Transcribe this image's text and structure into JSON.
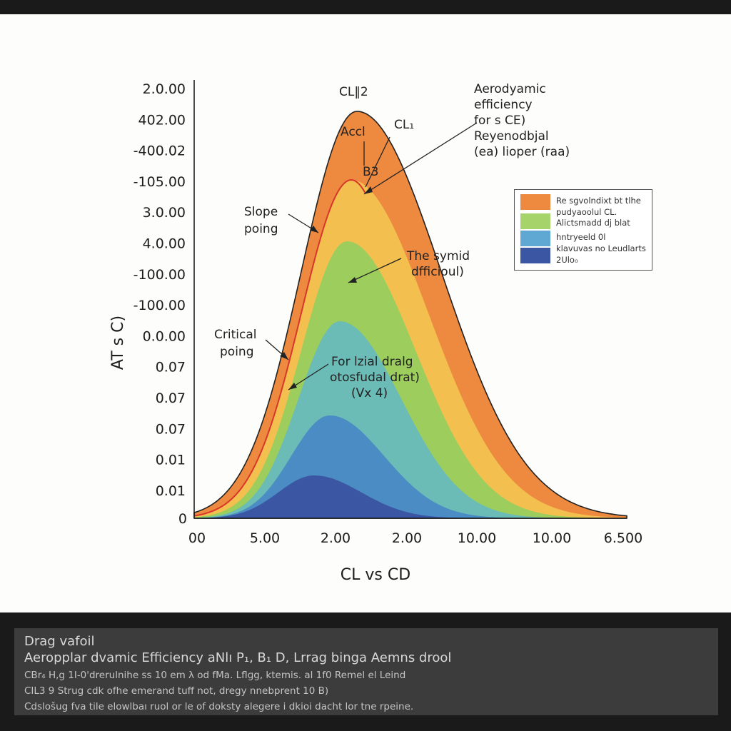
{
  "chart_data": {
    "type": "area",
    "ylabel": "AT s  C)",
    "xlabel": "CL vs CD",
    "y_ticks": [
      "2.0.00",
      "402.00",
      "-400.02",
      "-105.00",
      "3.0.00",
      "4.0.00",
      "-100.00",
      "-100.00",
      "0.0.00",
      "0.07",
      "0.07",
      "0.07",
      "0.01",
      "0.01",
      "0"
    ],
    "x_ticks": [
      "00",
      "5.00",
      "2.00",
      "2.00",
      "10.00",
      "10.00",
      "6.500"
    ],
    "series_colors": [
      "#ee8a40",
      "#f3c04f",
      "#9ccd5d",
      "#6bbbb6",
      "#4a8cc3",
      "#3b56a2"
    ],
    "curve_color": "#d8362b",
    "annotations": {
      "cl2": "CL‖2",
      "accl": "Accl",
      "b3": "B3",
      "cl1": "CL₁",
      "aero_line1": "Aerodyamic",
      "aero_line2": "efficiency",
      "aero_line3": "for s CE)",
      "aero_line4": "Reyenodbjal",
      "aero_line5": "(ea) lioper (raa)",
      "slope_line1": "Slope",
      "slope_line2": "poing",
      "symmid_line1": "The symid",
      "symmid_line2": "dfficioul)",
      "critical_line1": "Critical",
      "critical_line2": "poing",
      "drag_line1": "For lzial dralg",
      "drag_line2": "otosfudal drat)",
      "drag_line3": "(Vx 4)"
    }
  },
  "legend": [
    {
      "color": "#ee8a40",
      "label": "Re sgvolndixt bt tlhe"
    },
    {
      "color": "#a7d36b",
      "label": "pudyaoolul CL."
    },
    {
      "color": "#5fa8d3",
      "label": "Alictsmadd dj blat"
    },
    {
      "color": "#3b56a2",
      "label": "hntryeeld 0l"
    },
    {
      "extra_label": "klavuvas no Leudlarts"
    },
    {
      "extra_label": "2Ulo₀"
    }
  ],
  "caption": {
    "line1": "Drag vafoil",
    "line2": "Aeropplar dvamic Efficiency aNlı P₁, B₁ D, Lrrag binga Aemns drool",
    "line3": "CBr₄ H,g 1I-0'drerulnihe ss 10 em λ od fMa. Lflɡg, ktemis. al 1f0 Remel el Leind",
    "line4": "CIL3 9 Strug cdk ofhe emerand tuff not, dregy nnebprent 10 B)",
    "line5": "Cdslošug fva tile elowlbaı ruol or le of doksty alegere i dkioi dacht lor tne rpeine."
  }
}
